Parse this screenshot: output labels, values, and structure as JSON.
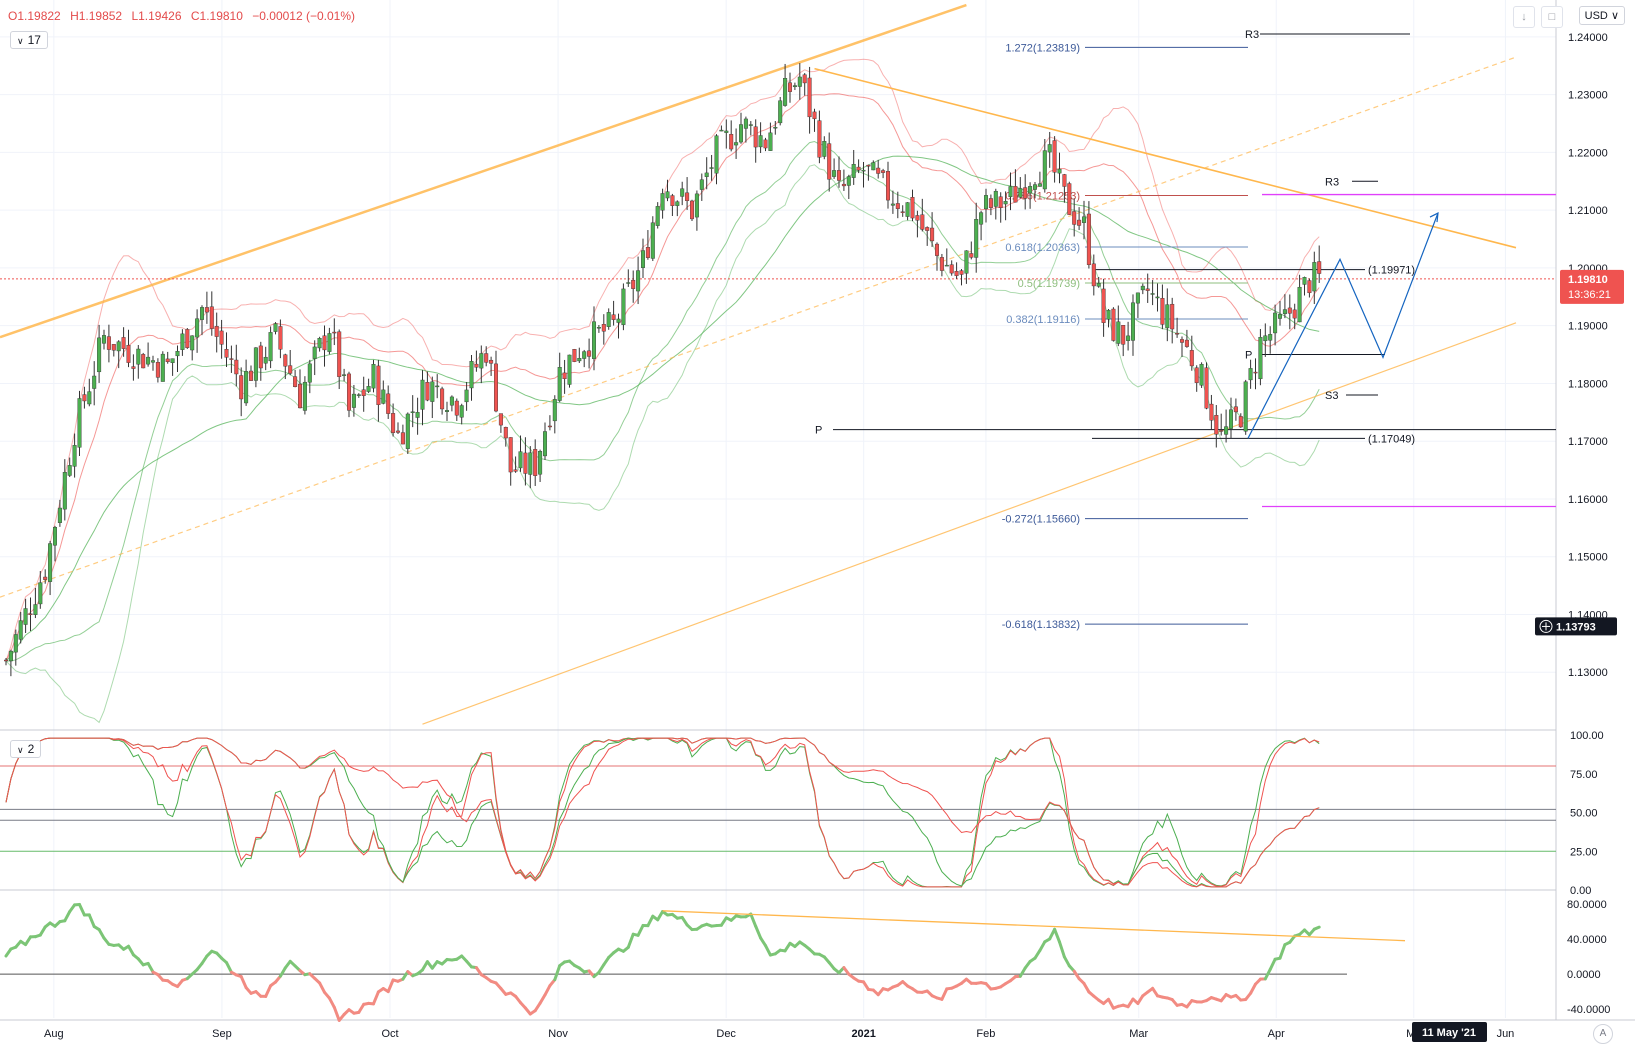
{
  "header": {
    "o": "O1.19822",
    "h": "H1.19852",
    "l": "L1.19426",
    "c": "C1.19810",
    "chg": "−0.00012 (−0.01%)",
    "main_indicator_count": "17",
    "osc_indicator_count": "2",
    "currency": "USD",
    "auto_label": "A"
  },
  "icons": [
    "download-icon",
    "fullscreen-icon",
    "chevron-down-icon",
    "crosshair-plus-icon"
  ],
  "colors": {
    "bull": "#4caf50",
    "bear": "#ef5350",
    "trend": "#ffb74d",
    "fib_blue": "#3d5a99",
    "fib_red": "#c0504d",
    "magenta": "#e040fb",
    "projection": "#1565c0",
    "price_tag": "#ef5350"
  },
  "chart_data": [
    {
      "type": "candlestick",
      "title": "",
      "x": [
        "Aug",
        "Sep",
        "Oct",
        "Nov",
        "Dec",
        "2021",
        "Feb",
        "Mar",
        "Apr",
        "Ma",
        "Jun"
      ],
      "ylim": [
        1.12,
        1.245
      ],
      "y_ticks": [
        "1.24000",
        "1.23000",
        "1.22000",
        "1.21000",
        "1.20000",
        "1.19000",
        "1.18000",
        "1.17000",
        "1.16000",
        "1.15000",
        "1.14000",
        "1.13000"
      ],
      "last_price": "1.19810",
      "countdown": "13:36:21",
      "crosshair_price": "1.13793",
      "crosshair_date": "11 May '21",
      "swing_path": [
        [
          0,
          1.132
        ],
        [
          8,
          1.148
        ],
        [
          14,
          1.172
        ],
        [
          20,
          1.188
        ],
        [
          27,
          1.185
        ],
        [
          33,
          1.183
        ],
        [
          40,
          1.193
        ],
        [
          48,
          1.18
        ],
        [
          55,
          1.188
        ],
        [
          60,
          1.178
        ],
        [
          66,
          1.19
        ],
        [
          70,
          1.175
        ],
        [
          75,
          1.181
        ],
        [
          80,
          1.171
        ],
        [
          86,
          1.18
        ],
        [
          92,
          1.177
        ],
        [
          98,
          1.186
        ],
        [
          103,
          1.165
        ],
        [
          108,
          1.166
        ],
        [
          113,
          1.182
        ],
        [
          118,
          1.187
        ],
        [
          124,
          1.19
        ],
        [
          130,
          1.201
        ],
        [
          134,
          1.215
        ],
        [
          140,
          1.21
        ],
        [
          145,
          1.22
        ],
        [
          150,
          1.225
        ],
        [
          155,
          1.222
        ],
        [
          159,
          1.23
        ],
        [
          162,
          1.233
        ],
        [
          166,
          1.222
        ],
        [
          170,
          1.213
        ],
        [
          175,
          1.217
        ],
        [
          180,
          1.213
        ],
        [
          185,
          1.21
        ],
        [
          190,
          1.202
        ],
        [
          195,
          1.198
        ],
        [
          199,
          1.21
        ],
        [
          205,
          1.212
        ],
        [
          210,
          1.217
        ],
        [
          213,
          1.2185
        ],
        [
          216,
          1.212
        ],
        [
          220,
          1.207
        ],
        [
          224,
          1.191
        ],
        [
          228,
          1.188
        ],
        [
          233,
          1.196
        ],
        [
          238,
          1.19
        ],
        [
          243,
          1.183
        ],
        [
          248,
          1.1705
        ],
        [
          252,
          1.175
        ],
        [
          256,
          1.187
        ],
        [
          261,
          1.191
        ],
        [
          266,
          1.198
        ],
        [
          268,
          1.1981
        ]
      ],
      "levels": [
        {
          "label": "1.272(1.23819)",
          "value": 1.23819
        },
        {
          "label": "0.786(1.21253)",
          "value": 1.21253
        },
        {
          "label": "0.618(1.20363)",
          "value": 1.20363
        },
        {
          "label": "0.5(1.19739)",
          "value": 1.19739
        },
        {
          "label": "0.382(1.19116)",
          "value": 1.19116
        },
        {
          "label": "-0.272(1.15660)",
          "value": 1.1566
        },
        {
          "label": "-0.618(1.13832)",
          "value": 1.13832
        },
        {
          "label": "(1.19971)",
          "value": 1.19971
        },
        {
          "label": "(1.17049)",
          "value": 1.17049
        }
      ],
      "pivots": [
        {
          "label": "R3",
          "value": 1.2405
        },
        {
          "label": "R3",
          "value": 1.215
        },
        {
          "label": "P",
          "value": 1.185
        },
        {
          "label": "S3",
          "value": 1.178
        },
        {
          "label": "P",
          "value": 1.172
        }
      ]
    },
    {
      "type": "line",
      "title": "",
      "ylim": [
        0,
        100
      ],
      "y_ticks": [
        "100.00",
        "75.00",
        "50.00",
        "25.00",
        "0.00"
      ],
      "levels": [
        80,
        52,
        45,
        25
      ]
    },
    {
      "type": "line",
      "title": "",
      "ylim": [
        -50,
        90
      ],
      "y_ticks": [
        "80.0000",
        "40.0000",
        "0.0000",
        "-40.0000"
      ],
      "series_points": [
        [
          0,
          20
        ],
        [
          6,
          45
        ],
        [
          12,
          65
        ],
        [
          15,
          80
        ],
        [
          20,
          40
        ],
        [
          26,
          25
        ],
        [
          30,
          3
        ],
        [
          36,
          -12
        ],
        [
          42,
          28
        ],
        [
          48,
          -5
        ],
        [
          52,
          -30
        ],
        [
          58,
          18
        ],
        [
          64,
          -15
        ],
        [
          68,
          -48
        ],
        [
          74,
          -35
        ],
        [
          80,
          -5
        ],
        [
          86,
          10
        ],
        [
          92,
          20
        ],
        [
          100,
          -10
        ],
        [
          108,
          -45
        ],
        [
          114,
          15
        ],
        [
          120,
          2
        ],
        [
          126,
          30
        ],
        [
          134,
          72
        ],
        [
          140,
          55
        ],
        [
          146,
          58
        ],
        [
          152,
          70
        ],
        [
          156,
          20
        ],
        [
          162,
          38
        ],
        [
          168,
          10
        ],
        [
          172,
          0
        ],
        [
          178,
          -20
        ],
        [
          184,
          -10
        ],
        [
          190,
          -30
        ],
        [
          196,
          -5
        ],
        [
          202,
          -15
        ],
        [
          208,
          2
        ],
        [
          214,
          50
        ],
        [
          217,
          10
        ],
        [
          222,
          -25
        ],
        [
          228,
          -40
        ],
        [
          234,
          -20
        ],
        [
          240,
          -35
        ],
        [
          246,
          -25
        ],
        [
          252,
          -30
        ],
        [
          258,
          5
        ],
        [
          262,
          40
        ],
        [
          268,
          52
        ]
      ]
    }
  ]
}
